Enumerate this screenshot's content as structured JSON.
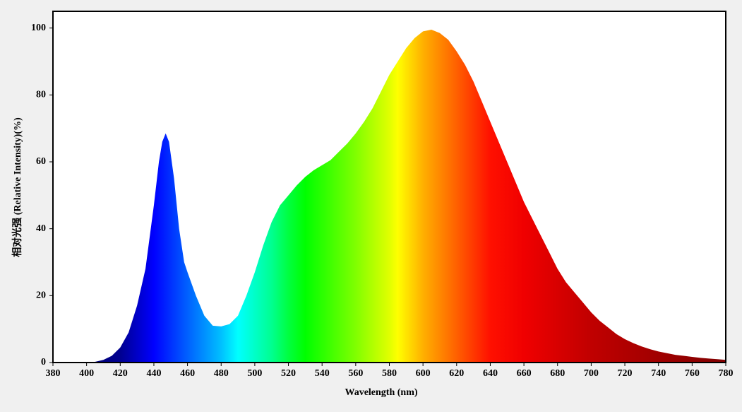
{
  "chart_data": {
    "type": "area",
    "xlabel": "Wavelength (nm)",
    "ylabel": "相对光强 (Relative Intensity)(%)",
    "x": [
      380,
      385,
      390,
      395,
      400,
      405,
      410,
      415,
      420,
      425,
      430,
      435,
      440,
      443,
      445,
      447,
      449,
      452,
      455,
      458,
      460,
      465,
      470,
      475,
      480,
      485,
      490,
      495,
      500,
      505,
      510,
      515,
      520,
      525,
      530,
      535,
      540,
      545,
      550,
      555,
      560,
      565,
      570,
      575,
      580,
      585,
      590,
      595,
      600,
      605,
      610,
      615,
      620,
      625,
      630,
      635,
      640,
      645,
      650,
      655,
      660,
      665,
      670,
      675,
      680,
      685,
      690,
      695,
      700,
      705,
      710,
      715,
      720,
      725,
      730,
      735,
      740,
      745,
      750,
      755,
      760,
      765,
      770,
      775,
      780
    ],
    "values": [
      0,
      0,
      0,
      0,
      0,
      0.2,
      0.8,
      2,
      4.5,
      9,
      17,
      28,
      47,
      60,
      66,
      68.5,
      66,
      55,
      40,
      30,
      27,
      20,
      14,
      11,
      10.8,
      11.5,
      14,
      20,
      27,
      35,
      42,
      47,
      50,
      53,
      55.5,
      57.5,
      59,
      60.5,
      63,
      65.5,
      68.5,
      72,
      76,
      81,
      86,
      90,
      94,
      97,
      99,
      99.5,
      98.5,
      96.5,
      93,
      89,
      84,
      78,
      72,
      66,
      60,
      54,
      48,
      43,
      38,
      33,
      28,
      24,
      21,
      18,
      15,
      12.5,
      10.5,
      8.5,
      7,
      5.8,
      4.8,
      4,
      3.3,
      2.8,
      2.3,
      2,
      1.7,
      1.4,
      1.2,
      1,
      0.8
    ],
    "xlim": [
      380,
      780
    ],
    "ylim": [
      0,
      105
    ],
    "xticks": [
      380,
      400,
      420,
      440,
      460,
      480,
      500,
      520,
      540,
      560,
      580,
      600,
      620,
      640,
      660,
      680,
      700,
      720,
      740,
      760,
      780
    ],
    "yticks": [
      0,
      20,
      40,
      60,
      80,
      100
    ]
  }
}
